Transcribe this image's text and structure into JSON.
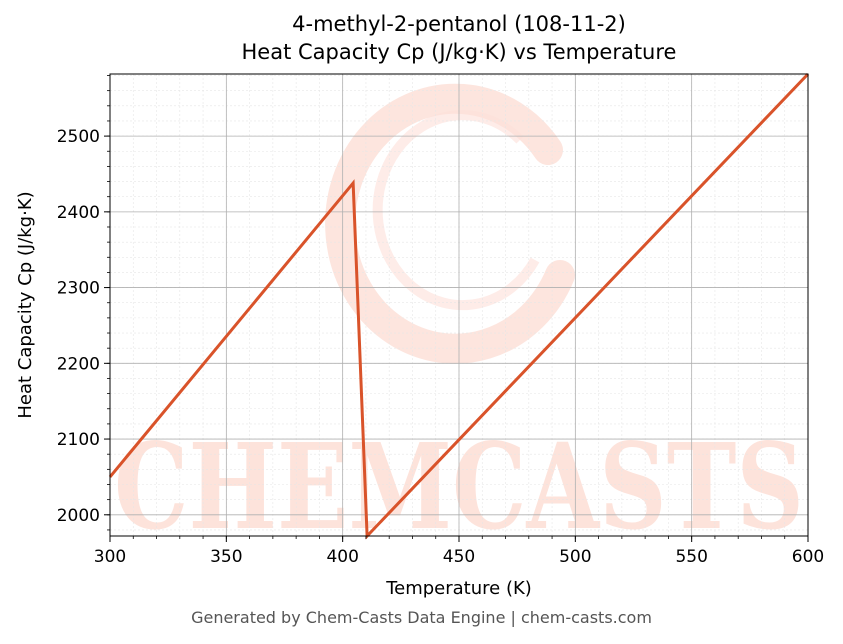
{
  "chart_data": {
    "type": "line",
    "title": "4-methyl-2-pentanol (108-11-2)",
    "subtitle": "Heat Capacity Cp (J/kg·K) vs Temperature",
    "xlabel": "Temperature (K)",
    "ylabel": "Heat Capacity Cp (J/kg·K)",
    "xlim": [
      300,
      600
    ],
    "ylim": [
      1972,
      2582
    ],
    "xticks": [
      300,
      350,
      400,
      450,
      500,
      550,
      600
    ],
    "yticks": [
      2000,
      2100,
      2200,
      2300,
      2400,
      2500
    ],
    "grid": true,
    "line_color": "#d9532a",
    "series": [
      {
        "x": [
          300,
          404.5,
          410.5,
          600
        ],
        "y": [
          2050,
          2438,
          1972,
          2582
        ]
      }
    ]
  },
  "watermark": {
    "text": "CHEMCASTS",
    "color": "#fde0d8"
  },
  "footer": "Generated by Chem-Casts Data Engine | chem-casts.com"
}
